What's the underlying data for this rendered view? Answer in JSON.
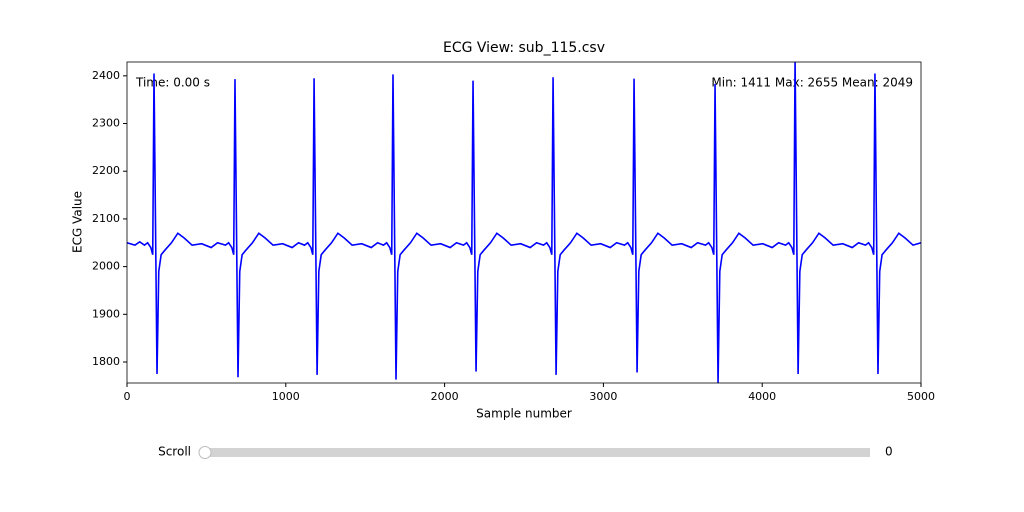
{
  "chart_data": {
    "type": "line",
    "title": "ECG View: sub_115.csv",
    "xlabel": "Sample number",
    "ylabel": "ECG Value",
    "annotations": [
      "Time: 0.00 s",
      "Min: 1411  Max: 2655  Mean: 2049"
    ],
    "color": "#0000ff",
    "xlim": [
      0,
      5000
    ],
    "ylim": [
      1756,
      2429
    ],
    "xticks": [
      0,
      1000,
      2000,
      3000,
      4000,
      5000
    ],
    "yticks": [
      1800,
      1900,
      2000,
      2100,
      2200,
      2300,
      2400
    ],
    "x": [
      0,
      50,
      80,
      110,
      130,
      150,
      162,
      170,
      189,
      200,
      215,
      240,
      280,
      320,
      360,
      410,
      470,
      530,
      570,
      620,
      640,
      660,
      672,
      680,
      699,
      710,
      725,
      750,
      790,
      830,
      870,
      920,
      980,
      1040,
      1080,
      1118,
      1138,
      1158,
      1170,
      1178,
      1197,
      1208,
      1223,
      1248,
      1288,
      1328,
      1368,
      1418,
      1478,
      1538,
      1578,
      1615,
      1635,
      1655,
      1667,
      1675,
      1694,
      1705,
      1720,
      1745,
      1785,
      1825,
      1865,
      1915,
      1975,
      2035,
      2075,
      2119,
      2139,
      2159,
      2171,
      2179,
      2198,
      2209,
      2224,
      2249,
      2289,
      2329,
      2369,
      2419,
      2479,
      2539,
      2579,
      2623,
      2643,
      2663,
      2675,
      2683,
      2702,
      2713,
      2728,
      2753,
      2793,
      2833,
      2873,
      2923,
      2983,
      3043,
      3083,
      3133,
      3153,
      3173,
      3185,
      3193,
      3212,
      3223,
      3238,
      3263,
      3303,
      3343,
      3383,
      3433,
      3493,
      3553,
      3593,
      3643,
      3663,
      3683,
      3695,
      3703,
      3722,
      3733,
      3748,
      3773,
      3813,
      3853,
      3893,
      3943,
      4003,
      4063,
      4103,
      4147,
      4167,
      4187,
      4199,
      4207,
      4226,
      4237,
      4252,
      4277,
      4317,
      4357,
      4397,
      4447,
      4507,
      4567,
      4607,
      4650,
      4670,
      4690,
      4702,
      4710,
      4729,
      4740,
      4755,
      4780,
      4820,
      4860,
      4900,
      4950,
      5000
    ],
    "values": [
      2050,
      2045,
      2052,
      2045,
      2050,
      2040,
      2025,
      2405,
      1775,
      1990,
      2025,
      2035,
      2050,
      2070,
      2060,
      2045,
      2048,
      2040,
      2050,
      2045,
      2050,
      2040,
      2025,
      2393,
      1768,
      1990,
      2025,
      2035,
      2050,
      2070,
      2060,
      2045,
      2048,
      2040,
      2050,
      2045,
      2050,
      2040,
      2025,
      2395,
      1773,
      1990,
      2025,
      2035,
      2050,
      2070,
      2060,
      2045,
      2048,
      2040,
      2050,
      2045,
      2050,
      2040,
      2025,
      2403,
      1763,
      1990,
      2025,
      2035,
      2050,
      2070,
      2060,
      2045,
      2048,
      2040,
      2050,
      2045,
      2050,
      2040,
      2025,
      2390,
      1780,
      1990,
      2025,
      2035,
      2050,
      2070,
      2060,
      2045,
      2048,
      2040,
      2050,
      2045,
      2050,
      2040,
      2025,
      2397,
      1773,
      1990,
      2025,
      2035,
      2050,
      2070,
      2060,
      2045,
      2048,
      2040,
      2050,
      2045,
      2050,
      2040,
      2025,
      2394,
      1778,
      1990,
      2025,
      2035,
      2050,
      2070,
      2060,
      2045,
      2048,
      2040,
      2050,
      2045,
      2050,
      2040,
      2025,
      2383,
      1756,
      1990,
      2025,
      2035,
      2050,
      2070,
      2060,
      2045,
      2048,
      2040,
      2050,
      2045,
      2050,
      2040,
      2025,
      2435,
      1775,
      1990,
      2025,
      2035,
      2050,
      2070,
      2060,
      2045,
      2048,
      2040,
      2050,
      2045,
      2050,
      2040,
      2025,
      2405,
      1775,
      1990,
      2025,
      2035,
      2050,
      2070,
      2060,
      2045,
      2050
    ]
  },
  "slider": {
    "label": "Scroll",
    "value": 0
  }
}
